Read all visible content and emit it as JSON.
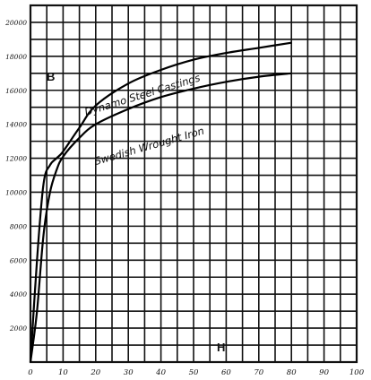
{
  "chart_data": {
    "type": "line",
    "title": "",
    "xlabel": "H",
    "ylabel": "B",
    "xlim": [
      0,
      100
    ],
    "ylim": [
      0,
      21000
    ],
    "grid": true,
    "x_ticks": [
      "0",
      "10",
      "20",
      "30",
      "40",
      "50",
      "60",
      "70",
      "80",
      "90",
      "100"
    ],
    "y_ticks": [
      "2000",
      "4000",
      "6000",
      "8000",
      "10000",
      "12000",
      "14000",
      "16000",
      "18000",
      "20000"
    ],
    "y_tick_values": [
      2000,
      4000,
      6000,
      8000,
      10000,
      12000,
      14000,
      16000,
      18000,
      20000
    ],
    "series": [
      {
        "name": "Dynamo Steel Castings",
        "x": [
          0,
          2,
          4,
          6,
          8,
          10,
          15,
          20,
          30,
          40,
          50,
          60,
          70,
          80
        ],
        "y": [
          0,
          6000,
          10500,
          11600,
          12000,
          12400,
          13800,
          15100,
          16400,
          17200,
          17800,
          18200,
          18500,
          18800
        ]
      },
      {
        "name": "Swedish Wrought Iron",
        "x": [
          0,
          2,
          4,
          6,
          8,
          10,
          15,
          20,
          30,
          40,
          50,
          60,
          70,
          80
        ],
        "y": [
          0,
          3000,
          7500,
          10000,
          11300,
          12100,
          13200,
          14000,
          14900,
          15600,
          16100,
          16500,
          16800,
          17000
        ]
      }
    ]
  }
}
